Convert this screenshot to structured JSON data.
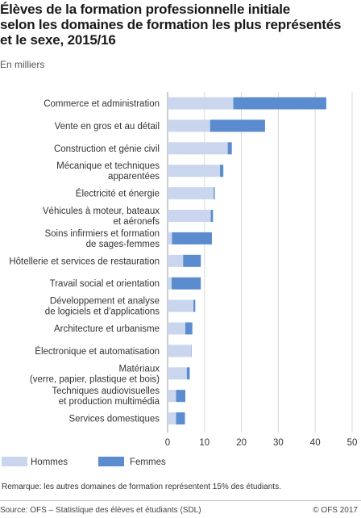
{
  "header": {
    "title": "Élèves de la formation professionnelle initiale\nselon les domaines de formation les plus représentés\net le sexe, 2015/16",
    "subtitle": "En milliers"
  },
  "chart_data": {
    "type": "bar",
    "orientation": "horizontal",
    "stacked": true,
    "categories": [
      "Commerce et administration",
      "Vente en gros et au détail",
      "Construction et génie civil",
      "Mécanique et techniques\napparentées",
      "Électricité et énergie",
      "Véhicules à moteur, bateaux\net aéronefs",
      "Soins infirmiers et formation\nde sages-femmes",
      "Hôtellerie et services de restauration",
      "Travail social et orientation",
      "Développement et analyse\nde logiciels et d'applications",
      "Architecture et urbanisme",
      "Électronique et automatisation",
      "Matériaux\n(verre, papier, plastique et bois)",
      "Techniques audiovisuelles\net production multimédia",
      "Services domestiques"
    ],
    "series": [
      {
        "name": "Hommes",
        "color": "#c9d6ee",
        "values": [
          17.8,
          11.5,
          16.3,
          14.2,
          12.5,
          11.7,
          1.2,
          4.2,
          1.1,
          7.0,
          4.8,
          6.4,
          5.2,
          2.3,
          2.3
        ]
      },
      {
        "name": "Femmes",
        "color": "#5b8ccf",
        "values": [
          25.2,
          14.9,
          1.1,
          0.9,
          0.3,
          0.6,
          10.8,
          4.8,
          7.9,
          0.5,
          1.9,
          0.1,
          0.8,
          2.5,
          2.4
        ]
      }
    ],
    "xlim": [
      0,
      50
    ],
    "xticks": [
      0,
      10,
      20,
      30,
      40,
      50
    ],
    "grid": true,
    "legend_position": "bottom-left"
  },
  "note": "Remarque: les autres domaines de formation représentent 15% des étudiants.",
  "source": "Source: OFS – Statistique des élèves et étudiants (SDL)",
  "copyright": "© OFS 2017"
}
